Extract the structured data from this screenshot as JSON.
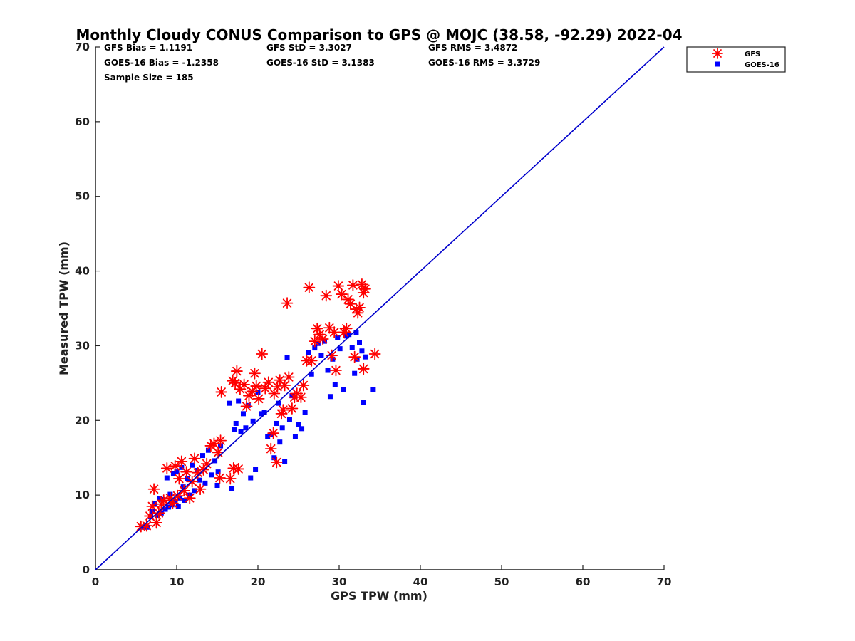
{
  "chart_data": {
    "type": "scatter",
    "title": "Monthly Cloudy CONUS Comparison to GPS @ MOJC (38.58, -92.29) 2022-04",
    "xlabel": "GPS TPW (mm)",
    "ylabel": "Measured TPW (mm)",
    "xlim": [
      0,
      70
    ],
    "ylim": [
      0,
      70
    ],
    "xticks": [
      0,
      10,
      20,
      30,
      40,
      50,
      60,
      70
    ],
    "yticks": [
      0,
      10,
      20,
      30,
      40,
      50,
      60,
      70
    ],
    "legend_position": "top-right",
    "reference_line": {
      "x": [
        0,
        70
      ],
      "y": [
        0,
        70
      ],
      "color": "#0000cc"
    },
    "stats": {
      "gfs_bias": "GFS Bias = 1.1191",
      "gfs_std": "GFS StD = 3.3027",
      "gfs_rms": "GFS RMS = 3.4872",
      "goes_bias": "GOES-16 Bias = -1.2358",
      "goes_std": "GOES-16 StD = 3.1383",
      "goes_rms": "GOES-16 RMS = 3.3729",
      "sample_size": "Sample Size = 185"
    },
    "series": [
      {
        "name": "GFS",
        "marker": "asterisk",
        "color": "#ff0000",
        "points": [
          [
            5.6,
            5.8
          ],
          [
            6.3,
            5.9
          ],
          [
            6.7,
            7.2
          ],
          [
            7.0,
            8.5
          ],
          [
            7.2,
            10.8
          ],
          [
            7.5,
            6.3
          ],
          [
            7.8,
            7.6
          ],
          [
            8.1,
            8.8
          ],
          [
            8.4,
            9.3
          ],
          [
            8.8,
            13.6
          ],
          [
            9.2,
            9.6
          ],
          [
            9.5,
            8.9
          ],
          [
            9.8,
            13.9
          ],
          [
            10.1,
            9.9
          ],
          [
            10.3,
            12.2
          ],
          [
            10.6,
            14.5
          ],
          [
            10.9,
            10.6
          ],
          [
            11.2,
            13.1
          ],
          [
            11.6,
            9.6
          ],
          [
            11.9,
            11.8
          ],
          [
            12.2,
            14.9
          ],
          [
            12.6,
            13.0
          ],
          [
            12.9,
            10.8
          ],
          [
            13.3,
            13.4
          ],
          [
            13.7,
            14.2
          ],
          [
            14.2,
            16.6
          ],
          [
            14.6,
            16.9
          ],
          [
            15.1,
            15.7
          ],
          [
            15.4,
            17.3
          ],
          [
            15.3,
            12.3
          ],
          [
            15.5,
            23.8
          ],
          [
            16.6,
            12.2
          ],
          [
            16.9,
            25.3
          ],
          [
            17.0,
            13.6
          ],
          [
            17.2,
            25.0
          ],
          [
            17.4,
            26.6
          ],
          [
            17.6,
            13.5
          ],
          [
            17.8,
            24.2
          ],
          [
            18.3,
            24.8
          ],
          [
            18.6,
            21.9
          ],
          [
            18.9,
            23.3
          ],
          [
            19.3,
            23.9
          ],
          [
            19.6,
            26.3
          ],
          [
            19.8,
            24.6
          ],
          [
            20.1,
            22.9
          ],
          [
            20.5,
            28.9
          ],
          [
            20.9,
            24.3
          ],
          [
            21.3,
            25.1
          ],
          [
            21.6,
            16.2
          ],
          [
            21.9,
            18.3
          ],
          [
            22.0,
            23.6
          ],
          [
            22.3,
            14.4
          ],
          [
            22.4,
            24.5
          ],
          [
            22.7,
            25.4
          ],
          [
            22.9,
            20.9
          ],
          [
            23.1,
            21.4
          ],
          [
            23.3,
            24.7
          ],
          [
            23.6,
            35.7
          ],
          [
            23.8,
            25.8
          ],
          [
            24.2,
            21.6
          ],
          [
            24.5,
            23.1
          ],
          [
            24.8,
            23.6
          ],
          [
            25.3,
            23.1
          ],
          [
            25.6,
            24.7
          ],
          [
            26.0,
            28.0
          ],
          [
            26.3,
            37.8
          ],
          [
            26.6,
            28.0
          ],
          [
            27.0,
            30.6
          ],
          [
            27.3,
            32.3
          ],
          [
            27.6,
            31.5
          ],
          [
            28.0,
            30.9
          ],
          [
            28.4,
            36.7
          ],
          [
            28.8,
            32.4
          ],
          [
            29.1,
            28.7
          ],
          [
            29.4,
            31.8
          ],
          [
            29.6,
            26.7
          ],
          [
            29.9,
            38.0
          ],
          [
            30.3,
            36.9
          ],
          [
            30.6,
            31.8
          ],
          [
            30.9,
            32.3
          ],
          [
            31.1,
            36.2
          ],
          [
            31.4,
            35.6
          ],
          [
            31.7,
            38.1
          ],
          [
            31.9,
            28.5
          ],
          [
            32.1,
            34.9
          ],
          [
            32.3,
            34.4
          ],
          [
            32.5,
            35.1
          ],
          [
            32.8,
            38.2
          ],
          [
            33.0,
            37.1
          ],
          [
            33.2,
            37.6
          ],
          [
            33.0,
            26.9
          ],
          [
            34.4,
            28.9
          ]
        ]
      },
      {
        "name": "GOES-16",
        "marker": "square",
        "color": "#0000ff",
        "points": [
          [
            5.9,
            5.7
          ],
          [
            6.4,
            5.7
          ],
          [
            6.8,
            7.1
          ],
          [
            7.0,
            7.8
          ],
          [
            7.3,
            8.9
          ],
          [
            7.6,
            7.2
          ],
          [
            7.9,
            9.5
          ],
          [
            8.1,
            7.6
          ],
          [
            8.3,
            9.4
          ],
          [
            8.6,
            8.1
          ],
          [
            8.8,
            12.3
          ],
          [
            9.0,
            8.4
          ],
          [
            9.2,
            10.1
          ],
          [
            9.4,
            8.7
          ],
          [
            9.6,
            12.9
          ],
          [
            9.8,
            9.2
          ],
          [
            10.0,
            13.1
          ],
          [
            10.2,
            8.5
          ],
          [
            10.4,
            9.6
          ],
          [
            10.6,
            13.7
          ],
          [
            10.8,
            11.1
          ],
          [
            11.0,
            9.3
          ],
          [
            11.3,
            12.2
          ],
          [
            11.6,
            10.0
          ],
          [
            11.9,
            14.0
          ],
          [
            12.2,
            10.6
          ],
          [
            12.5,
            13.3
          ],
          [
            12.8,
            12.0
          ],
          [
            13.2,
            15.3
          ],
          [
            13.5,
            11.6
          ],
          [
            13.9,
            16.0
          ],
          [
            14.3,
            12.7
          ],
          [
            14.7,
            14.6
          ],
          [
            15.1,
            13.1
          ],
          [
            15.4,
            16.6
          ],
          [
            15.0,
            11.3
          ],
          [
            16.5,
            22.3
          ],
          [
            16.8,
            10.9
          ],
          [
            17.1,
            18.8
          ],
          [
            17.3,
            19.6
          ],
          [
            17.6,
            22.6
          ],
          [
            17.9,
            18.5
          ],
          [
            18.2,
            20.9
          ],
          [
            18.5,
            19.0
          ],
          [
            18.8,
            22.0
          ],
          [
            19.1,
            12.3
          ],
          [
            19.4,
            19.9
          ],
          [
            19.7,
            13.4
          ],
          [
            20.0,
            23.7
          ],
          [
            20.4,
            20.9
          ],
          [
            20.8,
            21.1
          ],
          [
            21.2,
            17.8
          ],
          [
            21.6,
            18.1
          ],
          [
            22.0,
            15.0
          ],
          [
            22.3,
            19.6
          ],
          [
            22.5,
            22.3
          ],
          [
            22.7,
            17.1
          ],
          [
            23.0,
            19.0
          ],
          [
            23.3,
            14.5
          ],
          [
            23.6,
            28.4
          ],
          [
            23.9,
            20.1
          ],
          [
            24.2,
            23.3
          ],
          [
            24.6,
            17.8
          ],
          [
            25.0,
            19.5
          ],
          [
            25.4,
            18.9
          ],
          [
            25.8,
            21.1
          ],
          [
            26.2,
            29.1
          ],
          [
            26.6,
            26.2
          ],
          [
            27.0,
            29.7
          ],
          [
            27.4,
            30.3
          ],
          [
            27.8,
            28.7
          ],
          [
            28.2,
            30.6
          ],
          [
            28.6,
            26.7
          ],
          [
            28.9,
            23.2
          ],
          [
            29.2,
            28.2
          ],
          [
            29.5,
            24.8
          ],
          [
            29.8,
            31.1
          ],
          [
            30.1,
            29.6
          ],
          [
            30.5,
            24.1
          ],
          [
            30.9,
            31.3
          ],
          [
            31.2,
            31.5
          ],
          [
            31.6,
            29.8
          ],
          [
            31.9,
            26.3
          ],
          [
            32.2,
            28.2
          ],
          [
            32.5,
            30.4
          ],
          [
            32.8,
            29.3
          ],
          [
            33.0,
            22.4
          ],
          [
            33.2,
            28.5
          ],
          [
            34.2,
            24.1
          ],
          [
            32.1,
            31.8
          ]
        ]
      }
    ]
  }
}
